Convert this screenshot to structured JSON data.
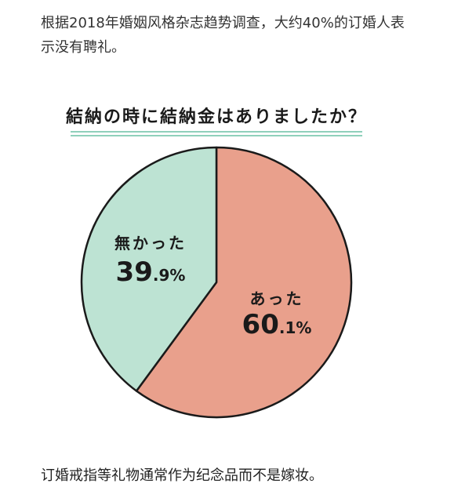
{
  "article": {
    "intro": "根据2018年婚姻风格杂志趋势调查，大约40%的订婚人表示没有聘礼。",
    "outro": "订婚戒指等礼物通常作为纪念品而不是嫁妆。"
  },
  "chart_data": {
    "type": "pie",
    "title": "結納の時に結納金はありましたか？",
    "start_angle_deg": 0,
    "slices": [
      {
        "label": "あった",
        "value": 60.1,
        "display": "60.1%",
        "color": "#e9a08c"
      },
      {
        "label": "無かった",
        "value": 39.9,
        "display": "39.9%",
        "color": "#bde3d3"
      }
    ],
    "outline_color": "#1a1a1a",
    "title_underline_color": "#8fd0bb"
  }
}
